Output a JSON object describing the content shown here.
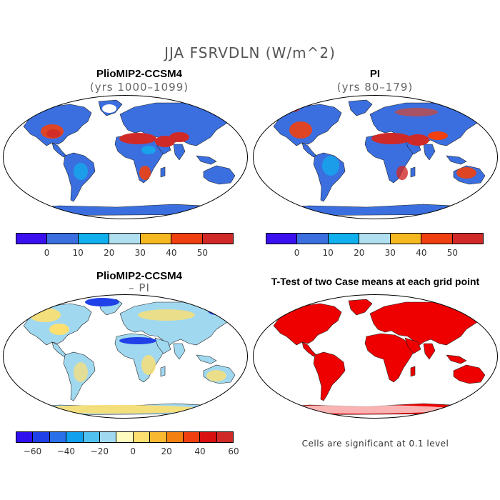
{
  "title": "JJA FSRVDLN (W/m^2)",
  "panels": [
    {
      "title": "PlioMIP2-CCSM4",
      "subtitle": "(yrs 1000–1099)"
    },
    {
      "title": "PI",
      "subtitle": "(yrs 80–179)"
    },
    {
      "title": "PlioMIP2-CCSM4",
      "subtitle": "– PI"
    },
    {
      "title": "T-Test of two Case means at each grid point",
      "subtitle": ""
    }
  ],
  "colorbar_abs": {
    "colors": [
      "#3a10ee",
      "#3b6fe0",
      "#10b0ee",
      "#b0e0f0",
      "#f5b820",
      "#f04010",
      "#d02a28"
    ],
    "ticks": [
      "0",
      "10",
      "20",
      "30",
      "40",
      "50"
    ]
  },
  "colorbar_diff": {
    "colors": [
      "#3010ee",
      "#2040e8",
      "#2a70e8",
      "#10a0ee",
      "#50c0f0",
      "#a0d8f0",
      "#fffcc0",
      "#fde070",
      "#f8b830",
      "#f48010",
      "#f04010",
      "#d81010",
      "#d02a28"
    ],
    "ticks": [
      "−60",
      "−40",
      "−20",
      "0",
      "20",
      "40",
      "60"
    ]
  },
  "significance_note": "Cells are significant at 0.1 level",
  "map_colors": {
    "ocean": "#ffffff",
    "land_base_abs": "#3b6fe0",
    "hot_abs": "#d02a28",
    "warm_abs": "#f04010",
    "mid_abs": "#10b0ee",
    "land_base_diff": "#a0d8f0",
    "pos_diff": "#fde070",
    "neg_diff": "#2040e8",
    "ttest": "#ee0000"
  }
}
